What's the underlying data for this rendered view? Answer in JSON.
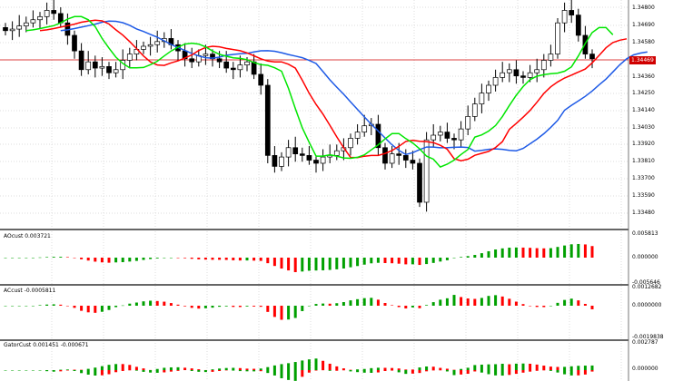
{
  "chart_data": {
    "type": "candlestick",
    "price_axis": {
      "ticks": [
        "1.34800",
        "1.34690",
        "1.34580",
        "1.34360",
        "1.34250",
        "1.34140",
        "1.34030",
        "1.33920",
        "1.33810",
        "1.33700",
        "1.33590",
        "1.33480"
      ],
      "ylim": [
        1.3343,
        1.3485
      ],
      "current_price": "1.34469"
    },
    "closes": [
      1.3465,
      1.3466,
      1.3468,
      1.347,
      1.3472,
      1.3474,
      1.3478,
      1.3476,
      1.347,
      1.3462,
      1.3452,
      1.344,
      1.3445,
      1.3441,
      1.3442,
      1.3438,
      1.344,
      1.3446,
      1.345,
      1.3453,
      1.3455,
      1.3456,
      1.3458,
      1.346,
      1.3456,
      1.3452,
      1.3447,
      1.3445,
      1.3449,
      1.345,
      1.3447,
      1.3445,
      1.3441,
      1.344,
      1.3443,
      1.3445,
      1.3437,
      1.343,
      1.3385,
      1.3378,
      1.3384,
      1.339,
      1.3386,
      1.3385,
      1.3382,
      1.338,
      1.3384,
      1.3385,
      1.3388,
      1.339,
      1.3396,
      1.34,
      1.3404,
      1.3405,
      1.339,
      1.338,
      1.3386,
      1.3385,
      1.3382,
      1.338,
      1.3355,
      1.3395,
      1.3398,
      1.34,
      1.3396,
      1.3395,
      1.3402,
      1.341,
      1.3418,
      1.3425,
      1.343,
      1.3435,
      1.3438,
      1.344,
      1.3436,
      1.3435,
      1.3438,
      1.344,
      1.3446,
      1.345,
      1.347,
      1.3478,
      1.3475,
      1.3462,
      1.345,
      1.3447
    ],
    "indicators": [
      {
        "name": "AOcust",
        "label": "AOcust 0.003721",
        "top": "0.005813",
        "zero": "0.000000",
        "bottom": "-0.005646"
      },
      {
        "name": "ACcust",
        "label": "ACcust -0.0005811",
        "top": "0.0012682",
        "zero": "0.0000000",
        "bottom": "-0.0019838"
      },
      {
        "name": "GatorCust",
        "label": "GatorCust 0.001451 -0.000671",
        "top": "0.002787",
        "zero": "0.000000"
      }
    ],
    "colors": {
      "up": "#00a000",
      "down": "#ff0000",
      "jaw": "#1e5ae6",
      "teeth": "#ff0000",
      "lips": "#00e600",
      "current": "#d00000"
    }
  }
}
